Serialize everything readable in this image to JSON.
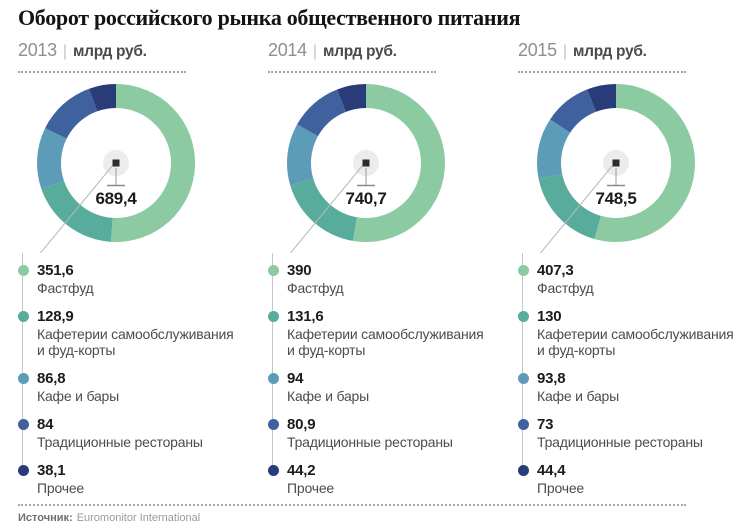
{
  "title": "Оборот российского рынка общественного питания",
  "header_divider": "|",
  "footer": {
    "source_label": "Источник:",
    "source_value": "Euromonitor International"
  },
  "palette": {
    "fastfood": "#8ccaa1",
    "cafeterias": "#57ac9b",
    "cafes_bars": "#5c9cb8",
    "traditional": "#3f629e",
    "other": "#2a3b7a"
  },
  "chart_data": [
    {
      "type": "pie",
      "year": "2013",
      "unit": "млрд руб.",
      "total_label": "689,4",
      "categories": [
        "Фастфуд",
        "Кафетерии самообслуживания и фуд-корты",
        "Кафе и бары",
        "Традиционные рестораны",
        "Прочее"
      ],
      "values": [
        351.6,
        128.9,
        86.8,
        84,
        38.1
      ],
      "value_labels": [
        "351,6",
        "128,9",
        "86,8",
        "84",
        "38,1"
      ],
      "colors": [
        "#8ccaa1",
        "#57ac9b",
        "#5c9cb8",
        "#3f629e",
        "#2a3b7a"
      ]
    },
    {
      "type": "pie",
      "year": "2014",
      "unit": "млрд руб.",
      "total_label": "740,7",
      "categories": [
        "Фастфуд",
        "Кафетерии самообслуживания и фуд-корты",
        "Кафе и бары",
        "Традиционные рестораны",
        "Прочее"
      ],
      "values": [
        390,
        131.6,
        94,
        80.9,
        44.2
      ],
      "value_labels": [
        "390",
        "131,6",
        "94",
        "80,9",
        "44,2"
      ],
      "colors": [
        "#8ccaa1",
        "#57ac9b",
        "#5c9cb8",
        "#3f629e",
        "#2a3b7a"
      ]
    },
    {
      "type": "pie",
      "year": "2015",
      "unit": "млрд руб.",
      "total_label": "748,5",
      "categories": [
        "Фастфуд",
        "Кафетерии самообслуживания и фуд-корты",
        "Кафе и бары",
        "Традиционные рестораны",
        "Прочее"
      ],
      "values": [
        407.3,
        130,
        93.8,
        73,
        44.4
      ],
      "value_labels": [
        "407,3",
        "130",
        "93,8",
        "73",
        "44,4"
      ],
      "colors": [
        "#8ccaa1",
        "#57ac9b",
        "#5c9cb8",
        "#3f629e",
        "#2a3b7a"
      ]
    }
  ]
}
